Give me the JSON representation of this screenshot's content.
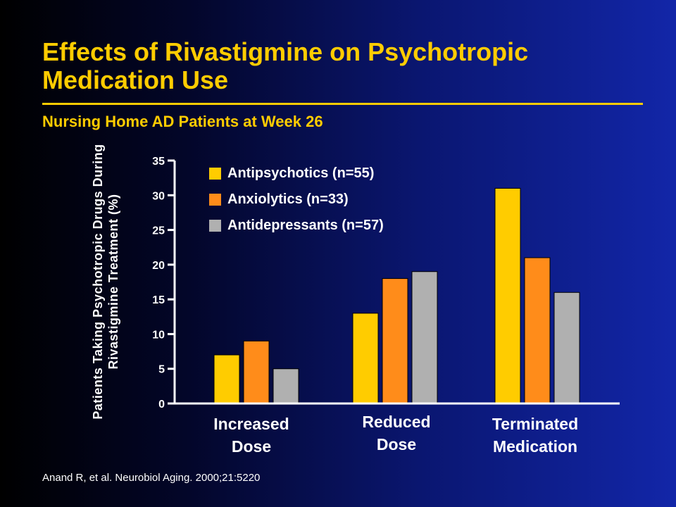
{
  "slide": {
    "title": "Effects of Rivastigmine on Psychotropic Medication Use",
    "subtitle": "Nursing Home AD Patients at Week 26",
    "citation": "Anand R, et al. Neurobiol Aging. 2000;21:5220"
  },
  "chart_data": {
    "type": "bar",
    "ylabel": "Patients Taking Psychotropic Drugs During Rivastigmine Treatment (%)",
    "ylim": [
      0,
      35
    ],
    "yticks": [
      0,
      5,
      10,
      15,
      20,
      25,
      30,
      35
    ],
    "categories": [
      "Increased Dose",
      "Reduced Dose",
      "Terminated Medication"
    ],
    "series": [
      {
        "name": "Antipsychotics (n=55)",
        "color": "#ffcc00",
        "values": [
          7,
          13,
          31
        ]
      },
      {
        "name": "Anxiolytics (n=33)",
        "color": "#ff8c1a",
        "values": [
          9,
          18,
          21
        ]
      },
      {
        "name": "Antidepressants (n=57)",
        "color": "#b0b0b0",
        "values": [
          5,
          19,
          16
        ]
      }
    ],
    "legend_position": "top-left",
    "grid": false
  }
}
